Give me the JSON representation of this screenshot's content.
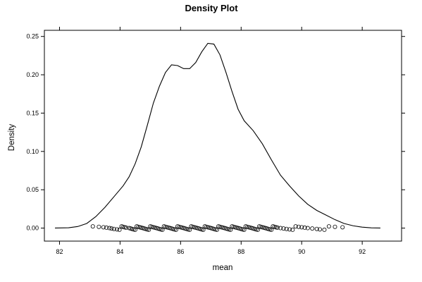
{
  "chart_data": {
    "type": "line",
    "title": "Density Plot",
    "xlabel": "mean",
    "ylabel": "Density",
    "xlim": [
      81.5,
      93.3
    ],
    "ylim": [
      -0.017,
      0.258
    ],
    "x_ticks": [
      82,
      84,
      86,
      88,
      90,
      92
    ],
    "y_ticks": [
      0.0,
      0.05,
      0.1,
      0.15,
      0.2,
      0.25
    ],
    "x_tick_labels": [
      "82",
      "84",
      "86",
      "88",
      "90",
      "92"
    ],
    "y_tick_labels": [
      "0.00",
      "0.05",
      "0.10",
      "0.15",
      "0.20",
      "0.25"
    ],
    "grid": false,
    "legend": "none",
    "series": [
      {
        "values": [
          [
            81.85,
            0.0001
          ],
          [
            82.3,
            0.0004
          ],
          [
            82.6,
            0.002
          ],
          [
            82.9,
            0.006
          ],
          [
            83.2,
            0.015
          ],
          [
            83.5,
            0.027
          ],
          [
            83.8,
            0.041
          ],
          [
            84.1,
            0.055
          ],
          [
            84.3,
            0.067
          ],
          [
            84.5,
            0.084
          ],
          [
            84.7,
            0.106
          ],
          [
            84.9,
            0.134
          ],
          [
            85.1,
            0.163
          ],
          [
            85.3,
            0.185
          ],
          [
            85.5,
            0.203
          ],
          [
            85.7,
            0.213
          ],
          [
            85.9,
            0.212
          ],
          [
            86.1,
            0.208
          ],
          [
            86.3,
            0.208
          ],
          [
            86.5,
            0.216
          ],
          [
            86.7,
            0.23
          ],
          [
            86.9,
            0.241
          ],
          [
            87.1,
            0.24
          ],
          [
            87.3,
            0.226
          ],
          [
            87.5,
            0.203
          ],
          [
            87.7,
            0.178
          ],
          [
            87.9,
            0.155
          ],
          [
            88.1,
            0.14
          ],
          [
            88.4,
            0.127
          ],
          [
            88.7,
            0.11
          ],
          [
            89.0,
            0.089
          ],
          [
            89.3,
            0.069
          ],
          [
            89.6,
            0.055
          ],
          [
            89.9,
            0.042
          ],
          [
            90.2,
            0.031
          ],
          [
            90.5,
            0.023
          ],
          [
            90.8,
            0.017
          ],
          [
            91.1,
            0.011
          ],
          [
            91.4,
            0.006
          ],
          [
            91.7,
            0.003
          ],
          [
            92.0,
            0.0012
          ],
          [
            92.3,
            0.0003
          ],
          [
            92.6,
            0.0001
          ]
        ]
      }
    ],
    "rug_points": [
      83.1,
      83.3,
      83.45,
      83.55,
      83.65,
      83.72,
      83.8,
      83.9,
      83.98,
      84.05,
      84.1,
      84.15,
      84.2,
      84.3,
      84.35,
      84.4,
      84.45,
      84.5,
      84.55,
      84.6,
      84.65,
      84.7,
      84.75,
      84.8,
      84.85,
      84.9,
      84.95,
      85.0,
      85.05,
      85.1,
      85.15,
      85.2,
      85.25,
      85.3,
      85.35,
      85.4,
      85.45,
      85.5,
      85.55,
      85.6,
      85.65,
      85.7,
      85.75,
      85.8,
      85.85,
      85.9,
      85.95,
      86.0,
      86.05,
      86.1,
      86.15,
      86.2,
      86.25,
      86.3,
      86.35,
      86.4,
      86.45,
      86.5,
      86.55,
      86.6,
      86.65,
      86.7,
      86.75,
      86.8,
      86.85,
      86.9,
      86.95,
      87.0,
      87.05,
      87.1,
      87.15,
      87.2,
      87.25,
      87.3,
      87.35,
      87.4,
      87.45,
      87.5,
      87.55,
      87.6,
      87.65,
      87.7,
      87.75,
      87.8,
      87.85,
      87.9,
      87.95,
      88.0,
      88.05,
      88.1,
      88.15,
      88.2,
      88.25,
      88.3,
      88.35,
      88.4,
      88.45,
      88.5,
      88.55,
      88.6,
      88.65,
      88.7,
      88.75,
      88.8,
      88.85,
      88.9,
      88.95,
      89.0,
      89.05,
      89.1,
      89.15,
      89.2,
      89.3,
      89.4,
      89.5,
      89.6,
      89.7,
      89.8,
      89.9,
      90.0,
      90.1,
      90.2,
      90.35,
      90.5,
      90.6,
      90.75,
      90.9,
      91.1,
      91.35
    ]
  }
}
